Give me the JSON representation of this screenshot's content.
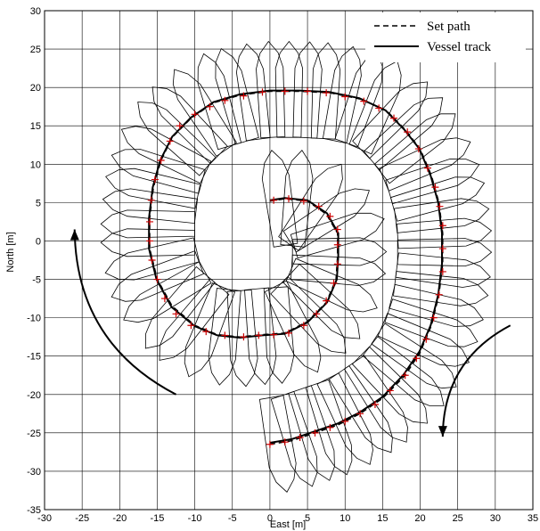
{
  "chart_data": {
    "type": "line",
    "title": "",
    "xlabel": "East [m]",
    "ylabel": "North [m]",
    "xlim": [
      -30,
      35
    ],
    "ylim": [
      -35,
      30
    ],
    "xticks": [
      -30,
      -25,
      -20,
      -15,
      -10,
      -5,
      0,
      5,
      10,
      15,
      20,
      25,
      30,
      35
    ],
    "yticks": [
      -35,
      -30,
      -25,
      -20,
      -15,
      -10,
      -5,
      0,
      5,
      10,
      15,
      20,
      25,
      30
    ],
    "grid": true,
    "legend_position": "top-right",
    "series": [
      {
        "name": "Set path",
        "style": "dashed",
        "color": "#000000",
        "points": [
          [
            0,
            -26.5
          ],
          [
            3,
            -26
          ],
          [
            6,
            -25
          ],
          [
            9,
            -24
          ],
          [
            12,
            -22.5
          ],
          [
            15,
            -20.5
          ],
          [
            18,
            -17.5
          ],
          [
            20,
            -14.5
          ],
          [
            21.5,
            -11
          ],
          [
            22.5,
            -7
          ],
          [
            23,
            -3
          ],
          [
            23,
            1
          ],
          [
            22.5,
            5
          ],
          [
            21.5,
            8.5
          ],
          [
            20,
            12
          ],
          [
            18,
            14.5
          ],
          [
            15.5,
            17
          ],
          [
            12,
            18.5
          ],
          [
            8,
            19.3
          ],
          [
            4,
            19.5
          ],
          [
            0,
            19.5
          ],
          [
            -4,
            19
          ],
          [
            -7.5,
            18
          ],
          [
            -10.5,
            16
          ],
          [
            -13,
            13.5
          ],
          [
            -14.5,
            10.5
          ],
          [
            -15.5,
            7
          ],
          [
            -16,
            3
          ],
          [
            -16,
            -1
          ],
          [
            -15,
            -5
          ],
          [
            -13,
            -8.5
          ],
          [
            -10,
            -11
          ],
          [
            -7,
            -12.2
          ],
          [
            -4,
            -12.5
          ],
          [
            -1,
            -12.2
          ],
          [
            2,
            -12
          ],
          [
            5,
            -10.5
          ],
          [
            7.5,
            -8
          ],
          [
            8.8,
            -5
          ],
          [
            9,
            -2
          ],
          [
            9,
            1
          ],
          [
            7.5,
            3.5
          ],
          [
            5,
            5.2
          ],
          [
            2,
            5.5
          ],
          [
            0,
            5.2
          ]
        ]
      },
      {
        "name": "Vessel track",
        "style": "solid",
        "color": "#000000",
        "points": [
          [
            0,
            -26.3
          ],
          [
            3,
            -25.8
          ],
          [
            6,
            -24.8
          ],
          [
            9,
            -23.8
          ],
          [
            12,
            -22.3
          ],
          [
            15,
            -20.3
          ],
          [
            17.8,
            -17.4
          ],
          [
            19.9,
            -14.4
          ],
          [
            21.4,
            -11
          ],
          [
            22.4,
            -7
          ],
          [
            22.9,
            -3
          ],
          [
            22.9,
            1
          ],
          [
            22.4,
            5
          ],
          [
            21.4,
            8.5
          ],
          [
            19.9,
            12
          ],
          [
            17.9,
            14.5
          ],
          [
            15.4,
            17
          ],
          [
            11.9,
            18.6
          ],
          [
            7.9,
            19.4
          ],
          [
            3.9,
            19.6
          ],
          [
            0,
            19.6
          ],
          [
            -4,
            19.1
          ],
          [
            -7.5,
            18.1
          ],
          [
            -10.5,
            16.1
          ],
          [
            -13,
            13.6
          ],
          [
            -14.6,
            10.5
          ],
          [
            -15.6,
            7
          ],
          [
            -16.1,
            3
          ],
          [
            -16.1,
            -1
          ],
          [
            -15.1,
            -5
          ],
          [
            -13.1,
            -8.6
          ],
          [
            -10,
            -11.1
          ],
          [
            -7,
            -12.3
          ],
          [
            -4,
            -12.6
          ],
          [
            -1,
            -12.3
          ],
          [
            2,
            -12.1
          ],
          [
            5,
            -10.6
          ],
          [
            7.6,
            -8
          ],
          [
            8.9,
            -5
          ],
          [
            9.1,
            -2
          ],
          [
            9.1,
            1
          ],
          [
            7.6,
            3.6
          ],
          [
            5,
            5.3
          ],
          [
            2,
            5.6
          ],
          [
            0,
            5.3
          ]
        ]
      }
    ],
    "waypoint_markers": {
      "color": "#cc0000",
      "symbol": "+",
      "points": [
        [
          0,
          -26.5
        ],
        [
          2,
          -26.2
        ],
        [
          4,
          -25.6
        ],
        [
          6,
          -25
        ],
        [
          8,
          -24.3
        ],
        [
          10,
          -23.5
        ],
        [
          12,
          -22.5
        ],
        [
          14,
          -21.3
        ],
        [
          16,
          -19.5
        ],
        [
          18,
          -17.5
        ],
        [
          19.5,
          -15.3
        ],
        [
          20.8,
          -12.8
        ],
        [
          21.8,
          -10
        ],
        [
          22.5,
          -7
        ],
        [
          23,
          -4
        ],
        [
          23,
          -1
        ],
        [
          23,
          2
        ],
        [
          22.6,
          4.5
        ],
        [
          22,
          7
        ],
        [
          21,
          9.5
        ],
        [
          19.8,
          12
        ],
        [
          18.3,
          14.2
        ],
        [
          16.5,
          16
        ],
        [
          14.5,
          17.3
        ],
        [
          12.5,
          18.2
        ],
        [
          10,
          18.8
        ],
        [
          7.5,
          19.3
        ],
        [
          5,
          19.5
        ],
        [
          2,
          19.5
        ],
        [
          -1,
          19.4
        ],
        [
          -3.5,
          18.9
        ],
        [
          -6,
          18.3
        ],
        [
          -8,
          17.5
        ],
        [
          -10,
          16.5
        ],
        [
          -12,
          15
        ],
        [
          -13.3,
          13
        ],
        [
          -14.5,
          10.5
        ],
        [
          -15.3,
          8
        ],
        [
          -15.8,
          5.3
        ],
        [
          -16,
          2.5
        ],
        [
          -16,
          0
        ],
        [
          -15.7,
          -2.5
        ],
        [
          -15,
          -5
        ],
        [
          -14,
          -7.5
        ],
        [
          -12.5,
          -9.5
        ],
        [
          -10.5,
          -11
        ],
        [
          -8.5,
          -11.8
        ],
        [
          -6,
          -12.3
        ],
        [
          -3.5,
          -12.5
        ],
        [
          -1.5,
          -12.3
        ],
        [
          0.5,
          -12.2
        ],
        [
          2.5,
          -12
        ],
        [
          4.5,
          -11
        ],
        [
          6.2,
          -9.5
        ],
        [
          7.5,
          -7.8
        ],
        [
          8.5,
          -5.5
        ],
        [
          9,
          -3
        ],
        [
          9,
          -0.5
        ],
        [
          9,
          1.5
        ],
        [
          8,
          3.2
        ],
        [
          6.5,
          4.5
        ],
        [
          4.5,
          5.2
        ],
        [
          2.5,
          5.5
        ],
        [
          0.5,
          5.3
        ]
      ]
    },
    "vessel_outline_count": 64,
    "arrows": [
      {
        "direction": "counter-clockwise",
        "from": [
          -12.5,
          -20
        ],
        "to": [
          -26,
          1.5
        ]
      },
      {
        "direction": "clockwise",
        "from": [
          32,
          -11
        ],
        "to": [
          23,
          -25.5
        ]
      }
    ]
  }
}
